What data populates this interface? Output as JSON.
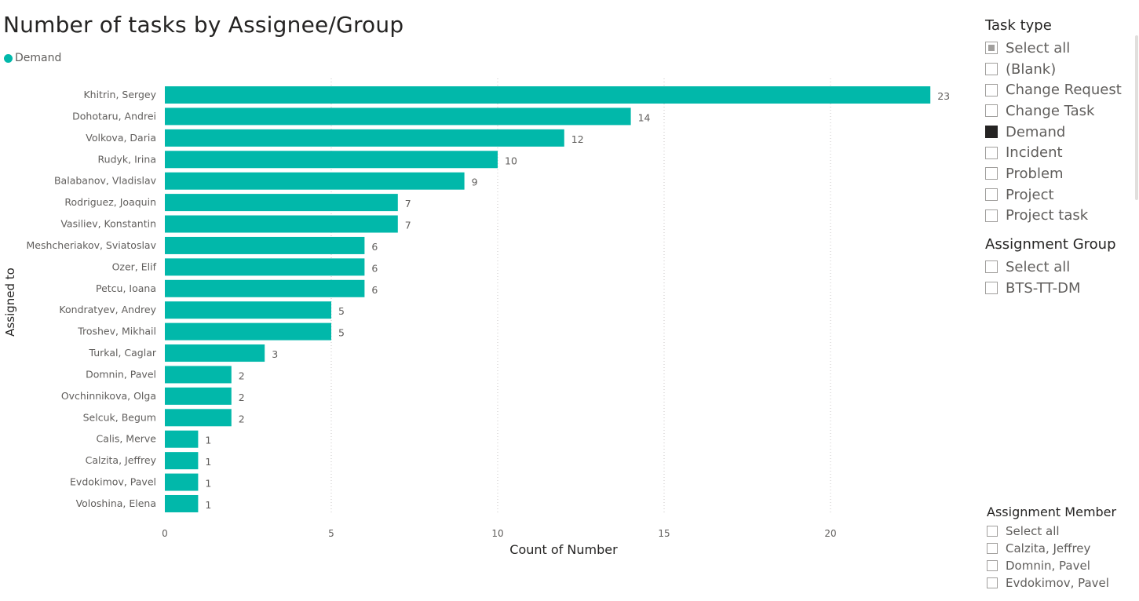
{
  "chart_data": {
    "type": "bar",
    "orientation": "horizontal",
    "title": "Number of tasks by Assignee/Group",
    "xlabel": "Count of Number",
    "ylabel": "Assigned to",
    "xlim": [
      0,
      25
    ],
    "xticks": [
      0,
      5,
      10,
      15,
      20
    ],
    "grid": true,
    "legend_position": "top-left",
    "categories": [
      "Khitrin, Sergey",
      "Dohotaru, Andrei",
      "Volkova, Daria",
      "Rudyk, Irina",
      "Balabanov, Vladislav",
      "Rodriguez, Joaquin",
      "Vasiliev, Konstantin",
      "Meshcheriakov, Sviatoslav",
      "Ozer, Elif",
      "Petcu, Ioana",
      "Kondratyev, Andrey",
      "Troshev, Mikhail",
      "Turkal, Caglar",
      "Domnin, Pavel",
      "Ovchinnikova, Olga",
      "Selcuk, Begum",
      "Calis, Merve",
      "Calzita, Jeffrey",
      "Evdokimov, Pavel",
      "Voloshina, Elena"
    ],
    "series": [
      {
        "name": "Demand",
        "color": "#01b8aa",
        "values": [
          23,
          14,
          12,
          10,
          9,
          7,
          7,
          6,
          6,
          6,
          5,
          5,
          3,
          2,
          2,
          2,
          1,
          1,
          1,
          1
        ]
      }
    ]
  },
  "slicers": {
    "task_type": {
      "title": "Task type",
      "items": [
        {
          "label": "Select all",
          "state": "partial"
        },
        {
          "label": "(Blank)",
          "state": "unchecked"
        },
        {
          "label": "Change Request",
          "state": "unchecked"
        },
        {
          "label": "Change Task",
          "state": "unchecked"
        },
        {
          "label": "Demand",
          "state": "checked"
        },
        {
          "label": "Incident",
          "state": "unchecked"
        },
        {
          "label": "Problem",
          "state": "unchecked"
        },
        {
          "label": "Project",
          "state": "unchecked"
        },
        {
          "label": "Project task",
          "state": "unchecked"
        }
      ]
    },
    "assignment_group": {
      "title": "Assignment Group",
      "items": [
        {
          "label": "Select all",
          "state": "unchecked"
        },
        {
          "label": "BTS-TT-DM",
          "state": "unchecked"
        }
      ]
    },
    "assignment_member": {
      "title": "Assignment Member",
      "items": [
        {
          "label": "Select all",
          "state": "unchecked"
        },
        {
          "label": "Calzita, Jeffrey",
          "state": "unchecked"
        },
        {
          "label": "Domnin, Pavel",
          "state": "unchecked"
        },
        {
          "label": "Evdokimov, Pavel",
          "state": "unchecked"
        }
      ]
    }
  }
}
